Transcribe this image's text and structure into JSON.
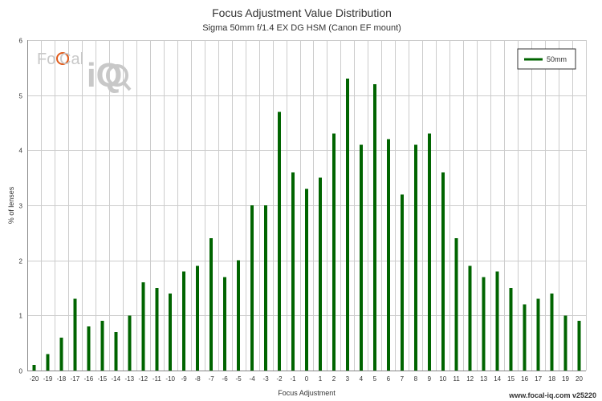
{
  "colors": {
    "bar": "#006400",
    "grid": "#cccccc",
    "axis": "#888888",
    "text": "#333333",
    "logo": "#c8c8c8",
    "logo_accent": "#e05a1a"
  },
  "logo": {
    "text": "FoCal iQ"
  },
  "watermark": "www.focal-iq.com  v25220",
  "chart_data": {
    "type": "bar",
    "title": "Focus Adjustment Value Distribution",
    "subtitle": "Sigma 50mm f/1.4 EX DG HSM (Canon EF mount)",
    "xlabel": "Focus Adjustment",
    "ylabel": "% of lenses",
    "ylim": [
      0,
      6
    ],
    "yticks": [
      "0",
      "1",
      "2",
      "3",
      "4",
      "5",
      "6"
    ],
    "legend": {
      "position": "top-right",
      "entries": [
        "50mm"
      ]
    },
    "grid": true,
    "categories": [
      "-20",
      "-19",
      "-18",
      "-17",
      "-16",
      "-15",
      "-14",
      "-13",
      "-12",
      "-11",
      "-10",
      "-9",
      "-8",
      "-7",
      "-6",
      "-5",
      "-4",
      "-3",
      "-2",
      "-1",
      "0",
      "1",
      "2",
      "3",
      "4",
      "5",
      "6",
      "7",
      "8",
      "9",
      "10",
      "11",
      "12",
      "13",
      "14",
      "15",
      "16",
      "17",
      "18",
      "19",
      "20"
    ],
    "series": [
      {
        "name": "50mm",
        "values": [
          0.1,
          0.3,
          0.6,
          1.3,
          0.8,
          0.9,
          0.7,
          1.0,
          1.6,
          1.5,
          1.4,
          1.8,
          1.9,
          2.4,
          1.7,
          2.0,
          3.0,
          3.0,
          4.7,
          3.6,
          3.3,
          3.5,
          4.3,
          5.3,
          4.1,
          5.2,
          4.2,
          3.2,
          4.1,
          4.3,
          3.6,
          2.4,
          1.9,
          1.7,
          1.8,
          1.5,
          1.2,
          1.3,
          1.4,
          1.0,
          0.9
        ]
      }
    ]
  }
}
